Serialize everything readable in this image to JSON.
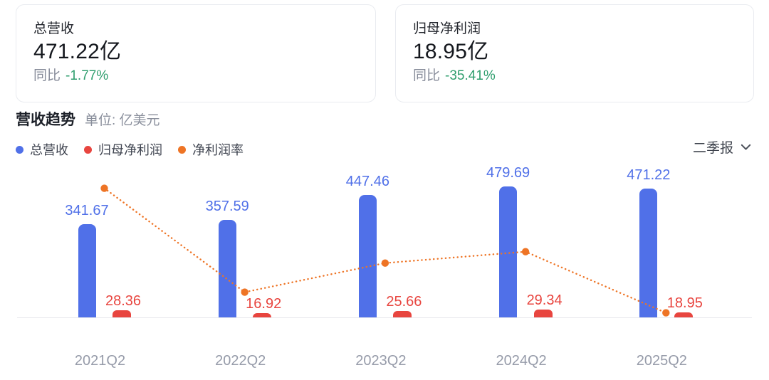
{
  "cards": [
    {
      "title": "总营收",
      "value": "471.22亿",
      "yoy_label": "同比",
      "yoy_value": "-1.77%"
    },
    {
      "title": "归母净利润",
      "value": "18.95亿",
      "yoy_label": "同比",
      "yoy_value": "-35.41%"
    }
  ],
  "trend": {
    "title": "营收趋势",
    "unit_label": "单位: 亿美元",
    "period_label": "二季报",
    "legend": [
      {
        "label": "总营收",
        "color": "#5070e8"
      },
      {
        "label": "归母净利润",
        "color": "#e8453f"
      },
      {
        "label": "净利润率",
        "color": "#ee7425"
      }
    ]
  },
  "chart_data": {
    "type": "bar",
    "title": "营收趋势",
    "unit": "亿美元",
    "categories": [
      "2021Q2",
      "2022Q2",
      "2023Q2",
      "2024Q2",
      "2025Q2"
    ],
    "series": [
      {
        "name": "总营收",
        "type": "bar",
        "color": "#5070e8",
        "values": [
          341.67,
          357.59,
          447.46,
          479.69,
          471.22
        ],
        "labels_shown": true
      },
      {
        "name": "归母净利润",
        "type": "bar",
        "color": "#e8453f",
        "values": [
          28.36,
          16.92,
          25.66,
          29.34,
          18.95
        ],
        "labels_shown": true
      },
      {
        "name": "净利润率",
        "type": "line",
        "style": "dotted",
        "color": "#ee7425",
        "values_pct": [
          8.3,
          4.73,
          5.73,
          6.12,
          4.02
        ],
        "labels_shown": false
      }
    ],
    "xlabel": "",
    "ylabel": "",
    "grid": false,
    "legend_position": "top-left"
  },
  "colors": {
    "revenue_blue": "#5070e8",
    "profit_red": "#e8453f",
    "margin_orange": "#ee7425",
    "yoy_green": "#2f9e6e",
    "axis_text": "#969ba9",
    "baseline": "#e8e9ed"
  }
}
